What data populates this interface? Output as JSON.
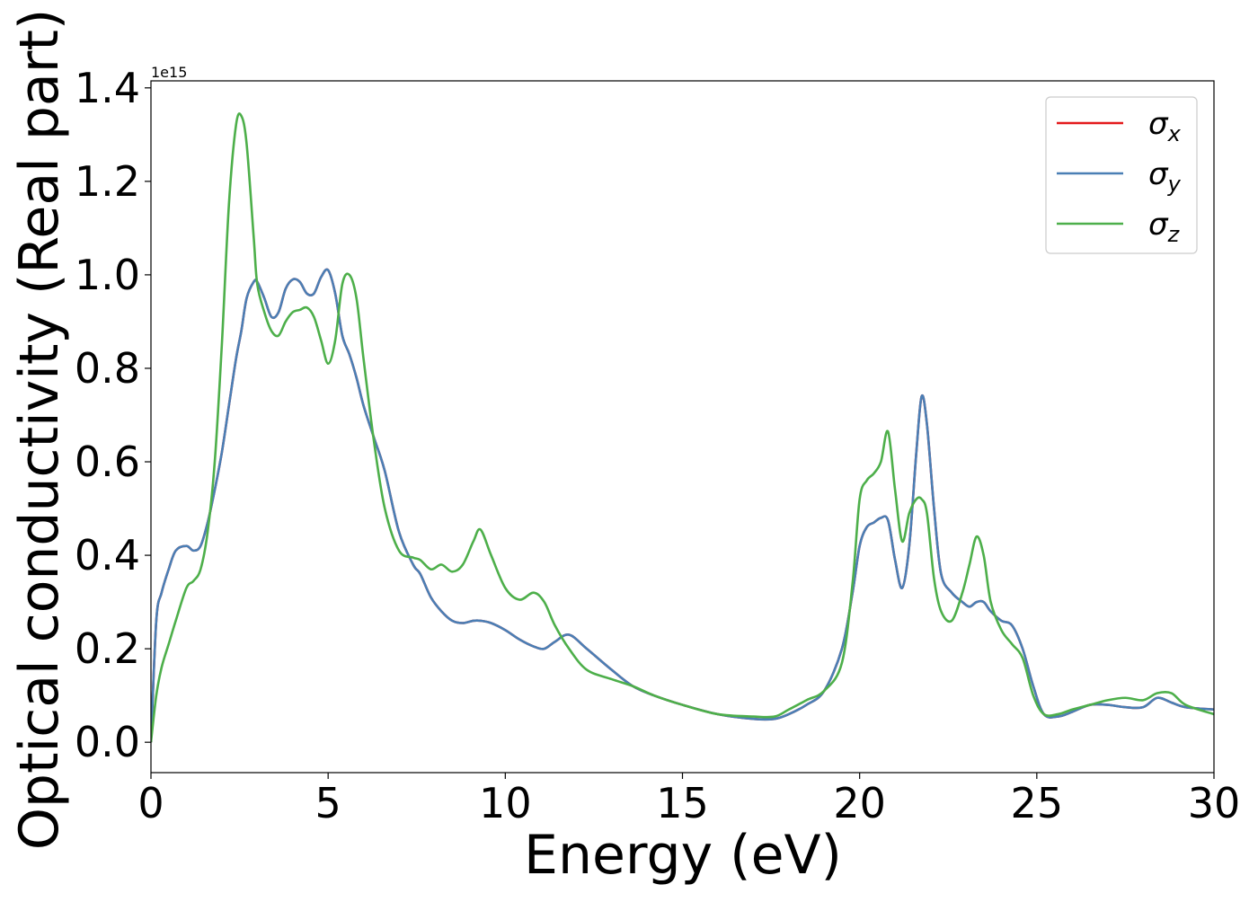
{
  "chart_data": {
    "type": "line",
    "title": "",
    "xlabel": "Energy (eV)",
    "ylabel": "Optical conductivity (Real part)",
    "y_offset_label": "1e15",
    "xlim": [
      0,
      30
    ],
    "ylim": [
      -0.065,
      1.415
    ],
    "x_ticks": [
      0,
      5,
      10,
      15,
      20,
      25,
      30
    ],
    "x_tick_labels": [
      "0",
      "5",
      "10",
      "15",
      "20",
      "25",
      "30"
    ],
    "y_ticks": [
      0.0,
      0.2,
      0.4,
      0.6,
      0.8,
      1.0,
      1.2,
      1.4
    ],
    "y_tick_labels": [
      "0.0",
      "0.2",
      "0.4",
      "0.6",
      "0.8",
      "1.0",
      "1.2",
      "1.4"
    ],
    "grid": false,
    "legend_position": "top-right",
    "x": [
      0,
      0.15,
      0.3,
      0.5,
      0.7,
      1.0,
      1.2,
      1.4,
      1.6,
      1.8,
      2.0,
      2.2,
      2.4,
      2.55,
      2.7,
      2.9,
      3.0,
      3.2,
      3.4,
      3.6,
      3.8,
      4.0,
      4.2,
      4.4,
      4.6,
      4.8,
      5.0,
      5.2,
      5.4,
      5.6,
      5.8,
      6.0,
      6.3,
      6.6,
      7.0,
      7.4,
      7.6,
      7.9,
      8.2,
      8.5,
      8.8,
      9.1,
      9.3,
      9.6,
      10.0,
      10.4,
      10.8,
      11.1,
      11.4,
      11.8,
      12.3,
      13.0,
      13.6,
      14.2,
      15.0,
      16.0,
      17.0,
      17.6,
      18.0,
      18.5,
      19.0,
      19.5,
      19.8,
      20.0,
      20.2,
      20.4,
      20.6,
      20.8,
      21.0,
      21.2,
      21.4,
      21.6,
      21.75,
      21.9,
      22.1,
      22.3,
      22.6,
      22.9,
      23.1,
      23.3,
      23.5,
      23.7,
      24.0,
      24.3,
      24.6,
      24.9,
      25.2,
      25.6,
      26.0,
      26.5,
      27.0,
      27.5,
      28.0,
      28.4,
      28.8,
      29.2,
      30.0
    ],
    "series": [
      {
        "name": "σx",
        "label_base": "σ",
        "label_sub": "x",
        "color": "#e41a1c",
        "values": [
          0.0,
          0.26,
          0.32,
          0.37,
          0.41,
          0.42,
          0.41,
          0.42,
          0.47,
          0.54,
          0.62,
          0.72,
          0.82,
          0.88,
          0.95,
          0.985,
          0.985,
          0.95,
          0.91,
          0.92,
          0.97,
          0.99,
          0.985,
          0.96,
          0.96,
          0.995,
          1.01,
          0.96,
          0.87,
          0.83,
          0.78,
          0.72,
          0.65,
          0.58,
          0.45,
          0.38,
          0.36,
          0.31,
          0.28,
          0.26,
          0.255,
          0.26,
          0.26,
          0.255,
          0.24,
          0.22,
          0.205,
          0.2,
          0.215,
          0.23,
          0.2,
          0.155,
          0.12,
          0.1,
          0.08,
          0.06,
          0.05,
          0.05,
          0.06,
          0.08,
          0.11,
          0.2,
          0.32,
          0.42,
          0.46,
          0.47,
          0.48,
          0.475,
          0.39,
          0.33,
          0.42,
          0.62,
          0.74,
          0.68,
          0.5,
          0.36,
          0.32,
          0.3,
          0.29,
          0.3,
          0.3,
          0.28,
          0.26,
          0.25,
          0.2,
          0.12,
          0.06,
          0.055,
          0.065,
          0.08,
          0.08,
          0.075,
          0.075,
          0.095,
          0.085,
          0.075,
          0.07
        ]
      },
      {
        "name": "σy",
        "label_base": "σ",
        "label_sub": "y",
        "color": "#4a7fb5",
        "values": [
          0.0,
          0.26,
          0.32,
          0.37,
          0.41,
          0.42,
          0.41,
          0.42,
          0.47,
          0.54,
          0.62,
          0.72,
          0.82,
          0.88,
          0.95,
          0.985,
          0.985,
          0.95,
          0.91,
          0.92,
          0.97,
          0.99,
          0.985,
          0.96,
          0.96,
          0.995,
          1.01,
          0.96,
          0.87,
          0.83,
          0.78,
          0.72,
          0.65,
          0.58,
          0.45,
          0.38,
          0.36,
          0.31,
          0.28,
          0.26,
          0.255,
          0.26,
          0.26,
          0.255,
          0.24,
          0.22,
          0.205,
          0.2,
          0.215,
          0.23,
          0.2,
          0.155,
          0.12,
          0.1,
          0.08,
          0.06,
          0.05,
          0.05,
          0.06,
          0.08,
          0.11,
          0.2,
          0.32,
          0.42,
          0.46,
          0.47,
          0.48,
          0.475,
          0.39,
          0.33,
          0.42,
          0.62,
          0.74,
          0.68,
          0.5,
          0.36,
          0.32,
          0.3,
          0.29,
          0.3,
          0.3,
          0.28,
          0.26,
          0.25,
          0.2,
          0.12,
          0.06,
          0.055,
          0.065,
          0.08,
          0.08,
          0.075,
          0.075,
          0.095,
          0.085,
          0.075,
          0.07
        ]
      },
      {
        "name": "σz",
        "label_base": "σ",
        "label_sub": "z",
        "color": "#4daf4a",
        "values": [
          0.0,
          0.1,
          0.16,
          0.21,
          0.26,
          0.33,
          0.345,
          0.37,
          0.45,
          0.6,
          0.85,
          1.15,
          1.32,
          1.34,
          1.28,
          1.08,
          0.98,
          0.92,
          0.88,
          0.87,
          0.9,
          0.92,
          0.925,
          0.93,
          0.91,
          0.86,
          0.81,
          0.86,
          0.98,
          1.0,
          0.95,
          0.82,
          0.64,
          0.5,
          0.41,
          0.395,
          0.39,
          0.37,
          0.38,
          0.365,
          0.38,
          0.43,
          0.455,
          0.4,
          0.33,
          0.305,
          0.32,
          0.3,
          0.25,
          0.2,
          0.155,
          0.135,
          0.12,
          0.1,
          0.08,
          0.06,
          0.055,
          0.055,
          0.07,
          0.09,
          0.11,
          0.17,
          0.34,
          0.52,
          0.56,
          0.575,
          0.6,
          0.665,
          0.54,
          0.43,
          0.49,
          0.52,
          0.52,
          0.49,
          0.35,
          0.28,
          0.26,
          0.32,
          0.38,
          0.44,
          0.4,
          0.3,
          0.24,
          0.21,
          0.18,
          0.1,
          0.06,
          0.06,
          0.07,
          0.08,
          0.09,
          0.095,
          0.09,
          0.105,
          0.105,
          0.08,
          0.06
        ]
      }
    ]
  }
}
